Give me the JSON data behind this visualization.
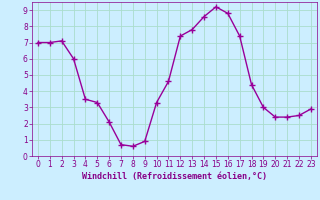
{
  "x": [
    0,
    1,
    2,
    3,
    4,
    5,
    6,
    7,
    8,
    9,
    10,
    11,
    12,
    13,
    14,
    15,
    16,
    17,
    18,
    19,
    20,
    21,
    22,
    23
  ],
  "y": [
    7.0,
    7.0,
    7.1,
    6.0,
    3.5,
    3.3,
    2.1,
    0.7,
    0.6,
    0.9,
    3.3,
    4.6,
    7.4,
    7.8,
    8.6,
    9.2,
    8.8,
    7.4,
    4.4,
    3.0,
    2.4,
    2.4,
    2.5,
    2.9
  ],
  "line_color": "#990099",
  "marker": "+",
  "markersize": 4,
  "linewidth": 1.0,
  "xlabel": "Windchill (Refroidissement éolien,°C)",
  "xlim": [
    -0.5,
    23.5
  ],
  "ylim": [
    0,
    9.5
  ],
  "yticks": [
    0,
    1,
    2,
    3,
    4,
    5,
    6,
    7,
    8,
    9
  ],
  "xticks": [
    0,
    1,
    2,
    3,
    4,
    5,
    6,
    7,
    8,
    9,
    10,
    11,
    12,
    13,
    14,
    15,
    16,
    17,
    18,
    19,
    20,
    21,
    22,
    23
  ],
  "bg_color": "#cceeff",
  "grid_color": "#aaddcc",
  "tick_color": "#880088",
  "label_color": "#880088",
  "xlabel_fontsize": 6.0,
  "tick_fontsize": 5.5,
  "figsize": [
    3.2,
    2.0
  ],
  "dpi": 100
}
